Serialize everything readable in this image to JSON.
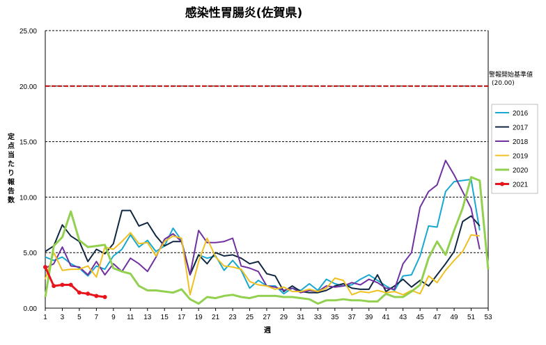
{
  "chart_data": {
    "type": "line",
    "title": "感染性胃腸炎(佐賀県)",
    "xlabel": "週",
    "ylabel": "定点当たり報告数",
    "xlim": [
      1,
      53
    ],
    "ylim": [
      0,
      25
    ],
    "x_ticks": [
      1,
      3,
      5,
      7,
      9,
      11,
      13,
      15,
      17,
      19,
      21,
      23,
      25,
      27,
      29,
      31,
      33,
      35,
      37,
      39,
      41,
      43,
      45,
      47,
      49,
      51,
      53
    ],
    "y_ticks": [
      "0.00",
      "5.00",
      "10.00",
      "15.00",
      "20.00",
      "25.00"
    ],
    "grid": "horizontal-dashed",
    "legend_position": "right",
    "threshold": {
      "value": 20.0,
      "label": "警報開始基準値",
      "value_label": "(20.00)",
      "color": "#c00000"
    },
    "series": [
      {
        "name": "2016",
        "color": "#17a8d0",
        "width": 2,
        "x": [
          1,
          2,
          3,
          4,
          5,
          6,
          7,
          8,
          9,
          10,
          11,
          12,
          13,
          14,
          15,
          16,
          17,
          18,
          19,
          20,
          21,
          22,
          23,
          24,
          25,
          26,
          27,
          28,
          29,
          30,
          31,
          32,
          33,
          34,
          35,
          36,
          37,
          38,
          39,
          40,
          41,
          42,
          43,
          44,
          45,
          46,
          47,
          48,
          49,
          50,
          51,
          52
        ],
        "values": [
          4.6,
          4.3,
          4.6,
          4.0,
          3.6,
          2.9,
          3.8,
          3.5,
          4.7,
          5.3,
          6.6,
          5.5,
          6.1,
          5.1,
          5.6,
          7.2,
          6.1,
          3.0,
          4.8,
          4.5,
          4.7,
          3.4,
          4.3,
          3.4,
          1.8,
          2.5,
          2.0,
          2.0,
          1.3,
          1.8,
          1.6,
          2.2,
          1.6,
          2.6,
          2.2,
          2.0,
          2.1,
          2.6,
          3.0,
          2.5,
          2.0,
          1.6,
          2.9,
          3.0,
          4.7,
          7.4,
          7.3,
          10.5,
          11.4,
          11.5,
          11.6,
          7.0
        ]
      },
      {
        "name": "2017",
        "color": "#0f2741",
        "width": 2,
        "x": [
          1,
          2,
          3,
          4,
          5,
          6,
          7,
          8,
          9,
          10,
          11,
          12,
          13,
          14,
          15,
          16,
          17,
          18,
          19,
          20,
          21,
          22,
          23,
          24,
          25,
          26,
          27,
          28,
          29,
          30,
          31,
          32,
          33,
          34,
          35,
          36,
          37,
          38,
          39,
          40,
          41,
          42,
          43,
          44,
          45,
          46,
          47,
          48,
          49,
          50,
          51,
          52
        ],
        "values": [
          5.1,
          5.6,
          7.5,
          6.5,
          6.0,
          4.2,
          5.3,
          4.9,
          5.8,
          8.8,
          8.8,
          7.4,
          7.7,
          6.5,
          5.6,
          6.0,
          6.0,
          3.0,
          4.8,
          4.0,
          5.0,
          4.7,
          4.8,
          4.5,
          4.0,
          4.2,
          3.1,
          2.9,
          1.5,
          2.0,
          1.5,
          1.4,
          1.4,
          1.6,
          2.0,
          2.2,
          1.8,
          1.7,
          1.7,
          3.0,
          1.5,
          2.0,
          2.6,
          1.9,
          2.5,
          2.0,
          3.0,
          4.0,
          5.1,
          7.8,
          8.3,
          7.4
        ]
      },
      {
        "name": "2018",
        "color": "#7030a0",
        "width": 2,
        "x": [
          1,
          2,
          3,
          4,
          5,
          6,
          7,
          8,
          9,
          10,
          11,
          12,
          13,
          14,
          15,
          16,
          17,
          18,
          19,
          20,
          21,
          22,
          23,
          24,
          25,
          26,
          27,
          28,
          29,
          30,
          31,
          32,
          33,
          34,
          35,
          36,
          37,
          38,
          39,
          40,
          41,
          42,
          43,
          44,
          45,
          46,
          47,
          48,
          49,
          50,
          51,
          52
        ],
        "values": [
          3.6,
          4.0,
          5.5,
          3.8,
          3.7,
          3.0,
          4.2,
          3.0,
          4.0,
          3.3,
          4.5,
          4.0,
          3.3,
          4.6,
          6.2,
          6.7,
          6.0,
          3.0,
          7.0,
          5.9,
          5.9,
          6.0,
          6.3,
          3.8,
          3.6,
          3.3,
          2.0,
          1.9,
          1.6,
          1.8,
          1.4,
          1.6,
          1.5,
          2.0,
          1.9,
          2.0,
          2.3,
          2.1,
          2.6,
          2.3,
          1.8,
          1.7,
          4.0,
          5.0,
          9.1,
          10.5,
          11.1,
          13.3,
          12.0,
          10.5,
          9.0,
          5.3
        ]
      },
      {
        "name": "2019",
        "color": "#f0c020",
        "width": 2,
        "x": [
          1,
          2,
          3,
          4,
          5,
          6,
          7,
          8,
          9,
          10,
          11,
          12,
          13,
          14,
          15,
          16,
          17,
          18,
          19,
          20,
          21,
          22,
          23,
          24,
          25,
          26,
          27,
          28,
          29,
          30,
          31,
          32,
          33,
          34,
          35,
          36,
          37,
          38,
          39,
          40,
          41,
          42,
          43,
          44,
          45,
          46,
          47,
          48,
          49,
          50,
          51,
          52
        ],
        "values": [
          2.6,
          5.0,
          3.4,
          3.5,
          3.5,
          3.8,
          2.8,
          5.5,
          5.3,
          6.0,
          6.8,
          5.8,
          5.9,
          4.7,
          6.0,
          6.5,
          6.3,
          1.2,
          4.2,
          6.3,
          4.6,
          3.8,
          3.7,
          3.5,
          2.4,
          2.1,
          2.0,
          1.7,
          1.9,
          1.5,
          1.5,
          1.7,
          1.5,
          1.8,
          2.7,
          2.5,
          1.2,
          1.5,
          1.4,
          1.6,
          1.4,
          1.5,
          1.2,
          1.6,
          1.3,
          2.9,
          2.3,
          3.4,
          4.3,
          5.1,
          6.6,
          6.5
        ]
      },
      {
        "name": "2020",
        "color": "#92d050",
        "width": 3,
        "x": [
          1,
          2,
          3,
          4,
          5,
          6,
          7,
          8,
          9,
          10,
          11,
          12,
          13,
          14,
          15,
          16,
          17,
          18,
          19,
          20,
          21,
          22,
          23,
          24,
          25,
          26,
          27,
          28,
          29,
          30,
          31,
          32,
          33,
          34,
          35,
          36,
          37,
          38,
          39,
          40,
          41,
          42,
          43,
          44,
          45,
          46,
          47,
          48,
          49,
          50,
          51,
          52,
          53
        ],
        "values": [
          1.0,
          5.6,
          6.4,
          8.7,
          6.1,
          5.5,
          5.6,
          5.7,
          3.6,
          3.3,
          3.1,
          2.0,
          1.6,
          1.6,
          1.5,
          1.4,
          1.7,
          0.8,
          0.4,
          1.0,
          0.9,
          1.1,
          1.2,
          1.0,
          0.9,
          1.1,
          1.1,
          1.1,
          1.0,
          1.0,
          0.9,
          0.8,
          0.4,
          0.7,
          0.7,
          0.8,
          0.7,
          0.7,
          0.6,
          0.6,
          1.3,
          1.0,
          1.0,
          1.5,
          2.1,
          4.5,
          6.0,
          4.8,
          7.0,
          9.0,
          11.8,
          11.5,
          3.5
        ]
      },
      {
        "name": "2021",
        "color": "#e8141c",
        "width": 3,
        "markers": true,
        "x": [
          1,
          2,
          3,
          4,
          5,
          6,
          7,
          8
        ],
        "values": [
          3.7,
          2.0,
          2.1,
          2.1,
          1.4,
          1.3,
          1.1,
          1.0
        ]
      }
    ]
  }
}
